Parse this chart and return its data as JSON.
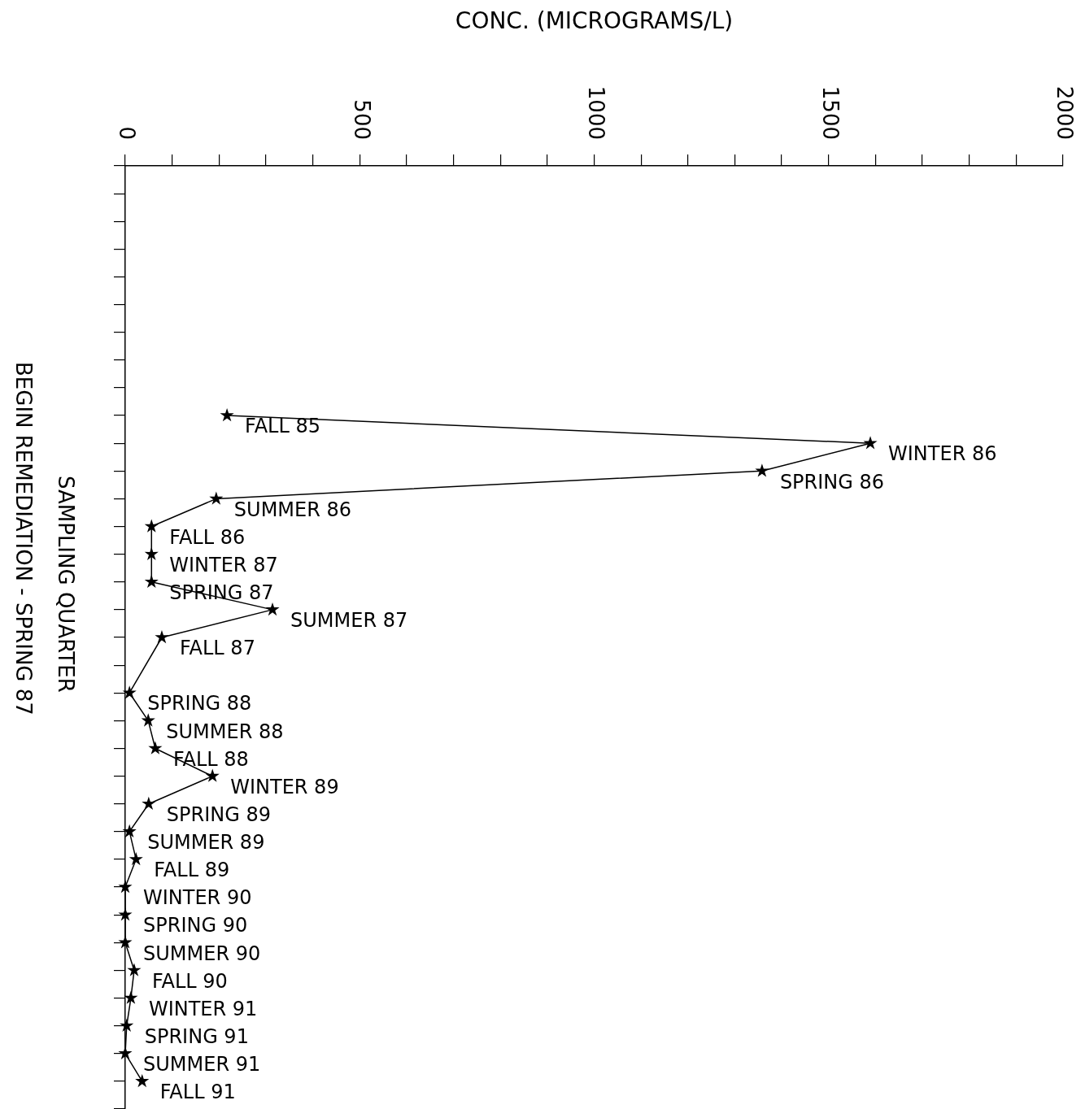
{
  "chart_data": {
    "type": "line",
    "orientation": "horizontal",
    "xlabel": "CONC. (MICROGRAMS/L)",
    "ylabel": "SAMPLING QUARTER",
    "annotations": [
      "BEGIN REMEDIATION - SPRING 87"
    ],
    "categories": [
      null,
      null,
      null,
      null,
      null,
      null,
      null,
      null,
      null,
      "FALL 85",
      "WINTER 86",
      "SPRING 86",
      "SUMMER 86",
      "FALL 86",
      "WINTER 87",
      "SPRING 87",
      "SUMMER 87",
      "FALL 87",
      null,
      "SPRING 88",
      "SUMMER 88",
      "FALL 88",
      "WINTER 89",
      "SPRING 89",
      "SUMMER 89",
      "FALL 89",
      "WINTER 90",
      "SPRING 90",
      "SUMMER 90",
      "FALL 90",
      "WINTER 91",
      "SPRING 91",
      "SUMMER 91",
      "FALL 91",
      null
    ],
    "series": [
      {
        "color": "#000000",
        "values": [
          null,
          null,
          null,
          null,
          null,
          null,
          null,
          null,
          null,
          217,
          1589,
          1358,
          194,
          56,
          56,
          56,
          314,
          78,
          null,
          9,
          49,
          64,
          186,
          50,
          9,
          23,
          0,
          0,
          0,
          19,
          12,
          3,
          0,
          36,
          null
        ]
      }
    ],
    "xlim": [
      0,
      2000
    ],
    "xticks": [
      0,
      {
        "value": 100,
        "label": null
      },
      {
        "value": 200,
        "label": null
      },
      {
        "value": 300,
        "label": null
      },
      {
        "value": 400,
        "label": null
      },
      500,
      {
        "value": 600,
        "label": null
      },
      {
        "value": 700,
        "label": null
      },
      {
        "value": 800,
        "label": null
      },
      {
        "value": 900,
        "label": null
      },
      1000,
      {
        "value": 1100,
        "label": null
      },
      {
        "value": 1200,
        "label": null
      },
      {
        "value": 1300,
        "label": null
      },
      {
        "value": 1400,
        "label": null
      },
      1500,
      {
        "value": 1600,
        "label": null
      },
      {
        "value": 1700,
        "label": null
      },
      {
        "value": 1800,
        "label": null
      },
      {
        "value": 1900,
        "label": null
      },
      2000
    ],
    "grid": false,
    "legend": false,
    "marker": "star",
    "line_style": "solid"
  }
}
